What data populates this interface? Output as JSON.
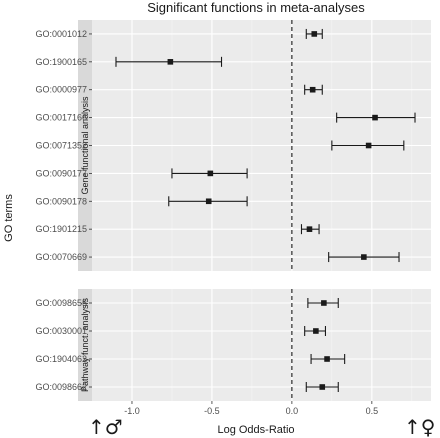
{
  "chart_data": {
    "type": "forest",
    "title": "Significant functions in meta-analyses",
    "xlabel": "Log Odds-Ratio",
    "ylabel": "GO terms",
    "xlim": [
      -1.25,
      0.87
    ],
    "xticks": [
      -1.0,
      -0.5,
      0.0,
      0.5
    ],
    "xtick_labels": [
      "-1.0",
      "-0.5",
      "0.0",
      "0.5"
    ],
    "reference_line": 0.0,
    "grid": true,
    "left_marker": "↑♂",
    "right_marker": "↑♀",
    "panels": [
      {
        "strip_label": "Gene functional analysis",
        "terms": [
          {
            "label": "GO:0001012",
            "estimate": 0.14,
            "lower": 0.09,
            "upper": 0.19
          },
          {
            "label": "GO:1900165",
            "estimate": -0.76,
            "lower": -1.1,
            "upper": -0.44
          },
          {
            "label": "GO:0000977",
            "estimate": 0.13,
            "lower": 0.08,
            "upper": 0.19
          },
          {
            "label": "GO:0017166",
            "estimate": 0.52,
            "lower": 0.28,
            "upper": 0.77
          },
          {
            "label": "GO:0071352",
            "estimate": 0.48,
            "lower": 0.25,
            "upper": 0.7
          },
          {
            "label": "GO:0090177",
            "estimate": -0.51,
            "lower": -0.75,
            "upper": -0.28
          },
          {
            "label": "GO:0090178",
            "estimate": -0.52,
            "lower": -0.77,
            "upper": -0.28
          },
          {
            "label": "GO:1901215",
            "estimate": 0.11,
            "lower": 0.06,
            "upper": 0.17
          },
          {
            "label": "GO:0070669",
            "estimate": 0.45,
            "lower": 0.23,
            "upper": 0.67
          }
        ]
      },
      {
        "strip_label": "Pathway funct. analysis",
        "terms": [
          {
            "label": "GO:0098655",
            "estimate": 0.2,
            "lower": 0.1,
            "upper": 0.29
          },
          {
            "label": "GO:0030001",
            "estimate": 0.15,
            "lower": 0.08,
            "upper": 0.21
          },
          {
            "label": "GO:1904062",
            "estimate": 0.22,
            "lower": 0.12,
            "upper": 0.33
          },
          {
            "label": "GO:0098662",
            "estimate": 0.19,
            "lower": 0.09,
            "upper": 0.29
          }
        ]
      }
    ]
  }
}
